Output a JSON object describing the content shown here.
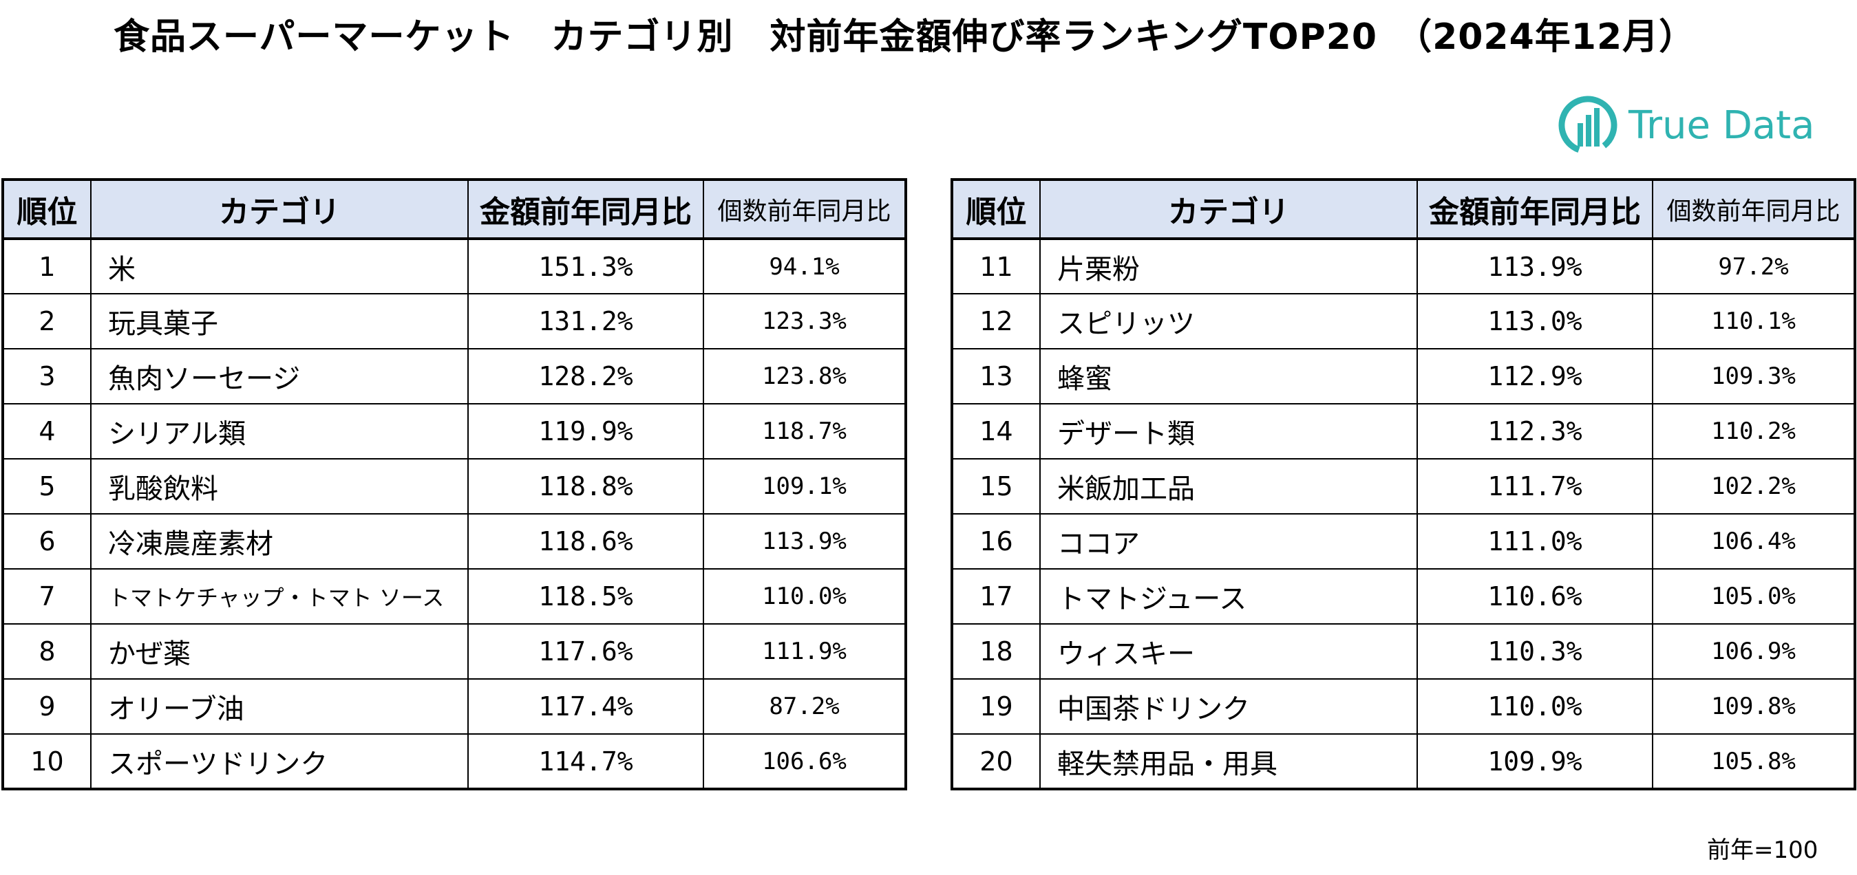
{
  "title": "食品スーパーマーケット　カテゴリ別　対前年金額伸び率ランキングTOP20　（2024年12月）",
  "logo": {
    "text": "True Data",
    "color": "#2fb3b1"
  },
  "table_headers": {
    "rank": "順位",
    "category": "カテゴリ",
    "amount": "金額前年同月比",
    "count": "個数前年同月比"
  },
  "header_color": "#dae3f3",
  "rows_left": [
    {
      "rank": "1",
      "category": "米",
      "amount": "151.3%",
      "count": "94.1%"
    },
    {
      "rank": "2",
      "category": "玩具菓子",
      "amount": "131.2%",
      "count": "123.3%"
    },
    {
      "rank": "3",
      "category": "魚肉ソーセージ",
      "amount": "128.2%",
      "count": "123.8%"
    },
    {
      "rank": "4",
      "category": "シリアル類",
      "amount": "119.9%",
      "count": "118.7%"
    },
    {
      "rank": "5",
      "category": "乳酸飲料",
      "amount": "118.8%",
      "count": "109.1%"
    },
    {
      "rank": "6",
      "category": "冷凍農産素材",
      "amount": "118.6%",
      "count": "113.9%"
    },
    {
      "rank": "7",
      "category": "トマトケチャップ・トマト ソース",
      "amount": "118.5%",
      "count": "110.0%"
    },
    {
      "rank": "8",
      "category": "かぜ薬",
      "amount": "117.6%",
      "count": "111.9%"
    },
    {
      "rank": "9",
      "category": "オリーブ油",
      "amount": "117.4%",
      "count": "87.2%"
    },
    {
      "rank": "10",
      "category": "スポーツドリンク",
      "amount": "114.7%",
      "count": "106.6%"
    }
  ],
  "rows_right": [
    {
      "rank": "11",
      "category": "片栗粉",
      "amount": "113.9%",
      "count": "97.2%"
    },
    {
      "rank": "12",
      "category": "スピリッツ",
      "amount": "113.0%",
      "count": "110.1%"
    },
    {
      "rank": "13",
      "category": "蜂蜜",
      "amount": "112.9%",
      "count": "109.3%"
    },
    {
      "rank": "14",
      "category": "デザート類",
      "amount": "112.3%",
      "count": "110.2%"
    },
    {
      "rank": "15",
      "category": "米飯加工品",
      "amount": "111.7%",
      "count": "102.2%"
    },
    {
      "rank": "16",
      "category": "ココア",
      "amount": "111.0%",
      "count": "106.4%"
    },
    {
      "rank": "17",
      "category": "トマトジュース",
      "amount": "110.6%",
      "count": "105.0%"
    },
    {
      "rank": "18",
      "category": "ウィスキー",
      "amount": "110.3%",
      "count": "106.9%"
    },
    {
      "rank": "19",
      "category": "中国茶ドリンク",
      "amount": "110.0%",
      "count": "109.8%"
    },
    {
      "rank": "20",
      "category": "軽失禁用品・用具",
      "amount": "109.9%",
      "count": "105.8%"
    }
  ],
  "note": "前年=100"
}
